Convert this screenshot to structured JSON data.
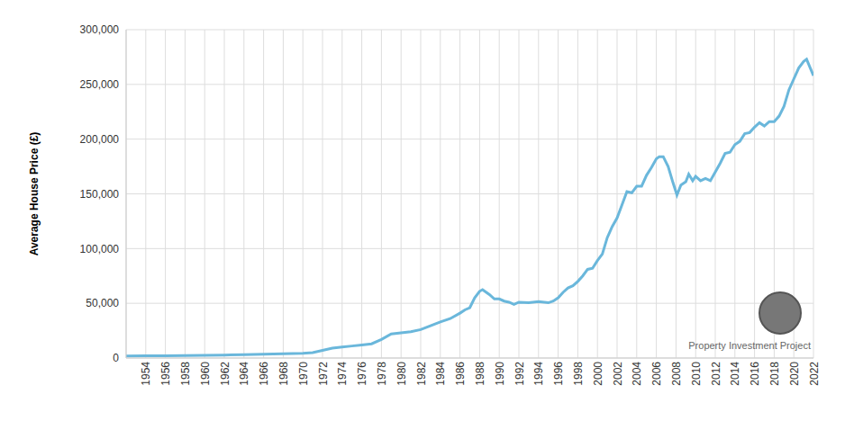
{
  "chart_data": {
    "type": "line",
    "y_label": "Average House Price (£)",
    "watermark": "Property Investment Project",
    "color": "#6ab7db",
    "grid": true,
    "x": [
      1952,
      1954,
      1956,
      1958,
      1960,
      1962,
      1964,
      1966,
      1968,
      1970,
      1971,
      1972,
      1973,
      1974,
      1975,
      1976,
      1977,
      1978,
      1979,
      1980,
      1981,
      1982,
      1983,
      1984,
      1985,
      1986,
      1986.5,
      1987,
      1987.5,
      1988,
      1988.3,
      1989,
      1989.5,
      1990,
      1990.5,
      1991,
      1991.5,
      1992,
      1993,
      1994,
      1995,
      1995.5,
      1996,
      1996.5,
      1997,
      1997.5,
      1998,
      1998.5,
      1999,
      1999.5,
      2000,
      2000.5,
      2001,
      2001.5,
      2002,
      2002.5,
      2003,
      2003.5,
      2004,
      2004.5,
      2005,
      2005.5,
      2006,
      2006.3,
      2006.7,
      2007.2,
      2007.7,
      2008.1,
      2008.5,
      2009,
      2009.3,
      2009.7,
      2010,
      2010.5,
      2011,
      2011.5,
      2012,
      2012.5,
      2013,
      2013.5,
      2014,
      2014.5,
      2015,
      2015.5,
      2016,
      2016.5,
      2017,
      2017.5,
      2018,
      2018.5,
      2019,
      2019.5,
      2020,
      2020.5,
      2021,
      2021.3,
      2022
    ],
    "values": [
      1900,
      2000,
      2100,
      2200,
      2500,
      2700,
      3100,
      3500,
      3900,
      4400,
      5000,
      7000,
      9000,
      10000,
      11000,
      12000,
      13000,
      17000,
      22000,
      23000,
      24000,
      26000,
      29500,
      33000,
      36000,
      41000,
      44000,
      46000,
      55000,
      61000,
      62500,
      58000,
      54000,
      54000,
      52000,
      51000,
      49000,
      51000,
      50500,
      51500,
      50500,
      52000,
      55000,
      60000,
      64000,
      66000,
      70000,
      75000,
      81000,
      82000,
      89000,
      95000,
      110000,
      120000,
      128000,
      140000,
      152000,
      151000,
      157000,
      157000,
      167000,
      174000,
      182000,
      184000,
      184000,
      175000,
      160000,
      149000,
      158000,
      161000,
      168000,
      162000,
      166000,
      162000,
      164000,
      162000,
      170000,
      178000,
      187000,
      188000,
      195000,
      198000,
      205000,
      206000,
      211000,
      215000,
      212000,
      216000,
      216000,
      221000,
      230000,
      245000,
      255000,
      265000,
      271000,
      273000,
      258000
    ],
    "xlim": [
      1952,
      2022
    ],
    "xticks": [
      1954,
      1956,
      1958,
      1960,
      1962,
      1964,
      1966,
      1968,
      1970,
      1972,
      1974,
      1976,
      1978,
      1980,
      1982,
      1984,
      1986,
      1988,
      1990,
      1992,
      1994,
      1996,
      1998,
      2000,
      2002,
      2004,
      2006,
      2008,
      2010,
      2012,
      2014,
      2016,
      2018,
      2020,
      2022
    ],
    "ylim": [
      0,
      300000
    ],
    "yticks": [
      0,
      {
        "value": 50000,
        "label": "50,000"
      },
      {
        "value": 100000,
        "label": "100,000"
      },
      {
        "value": 150000,
        "label": "150,000"
      },
      {
        "value": 200000,
        "label": "200,000"
      },
      {
        "value": 250000,
        "label": "250,000"
      },
      {
        "value": 300000,
        "label": "300,000"
      }
    ]
  }
}
